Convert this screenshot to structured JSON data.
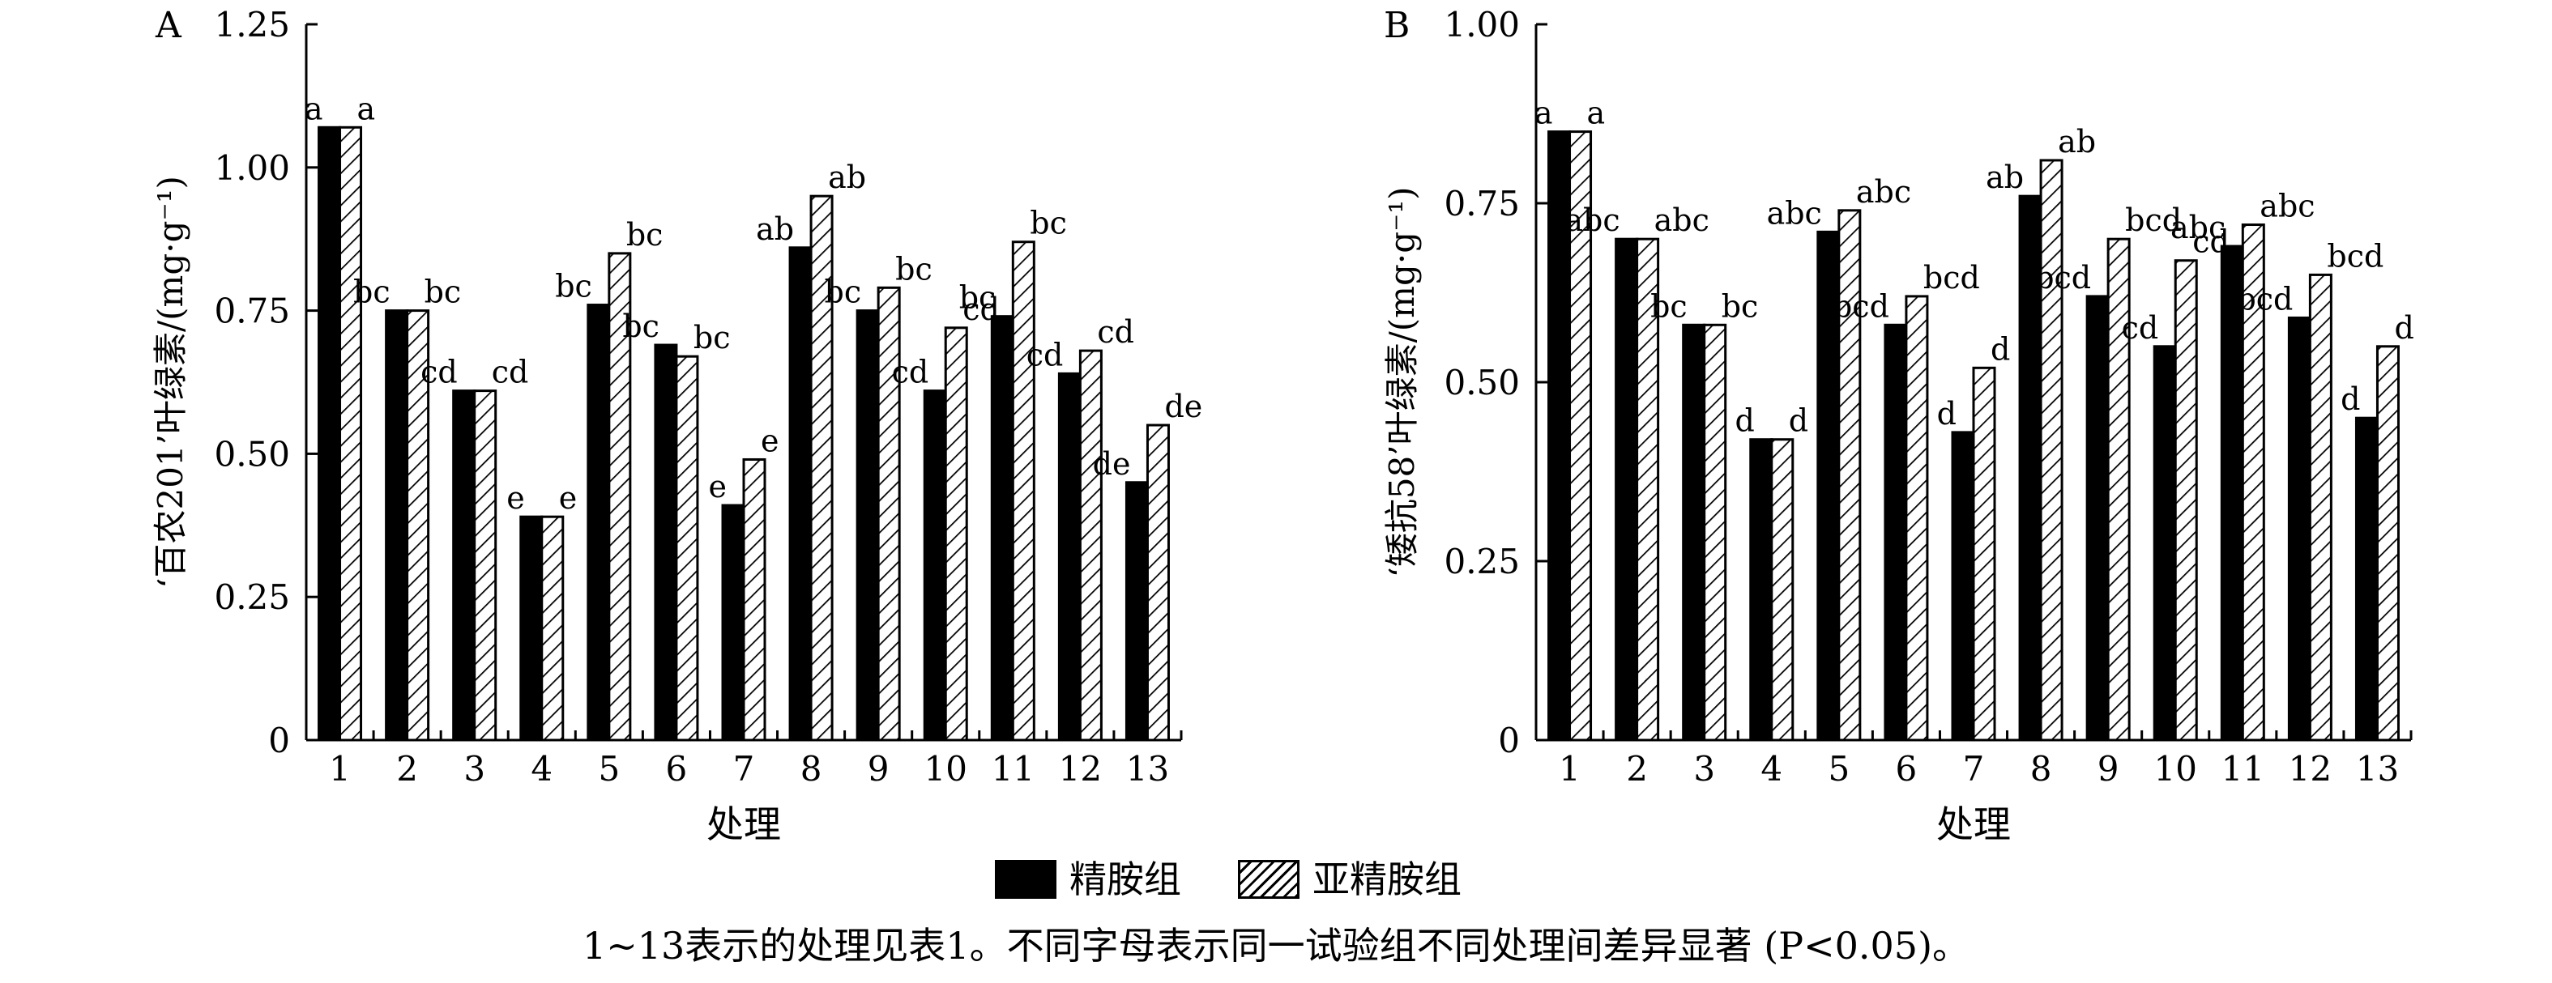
{
  "chart_data": [
    {
      "type": "bar",
      "panel": "A",
      "ylabel": "‘百农201’叶绿素/(mg·g⁻¹)",
      "xlabel": "处理",
      "ylim": [
        0,
        1.25
      ],
      "yticks": [
        "0",
        "0.25",
        "0.50",
        "0.75",
        "1.00",
        "1.25"
      ],
      "categories": [
        "1",
        "2",
        "3",
        "4",
        "5",
        "6",
        "7",
        "8",
        "9",
        "10",
        "11",
        "12",
        "13"
      ],
      "series": [
        {
          "name": "精胺组",
          "values": [
            1.07,
            0.75,
            0.61,
            0.39,
            0.76,
            0.69,
            0.41,
            0.86,
            0.75,
            0.61,
            0.74,
            0.64,
            0.45
          ],
          "labels": [
            "a",
            "bc",
            "cd",
            "e",
            "bc",
            "bc",
            "e",
            "ab",
            "bc",
            "cd",
            "bc",
            "cd",
            "de"
          ]
        },
        {
          "name": "亚精胺组",
          "values": [
            1.07,
            0.75,
            0.61,
            0.39,
            0.85,
            0.67,
            0.49,
            0.95,
            0.79,
            0.72,
            0.87,
            0.68,
            0.55
          ],
          "labels": [
            "a",
            "bc",
            "cd",
            "e",
            "bc",
            "bc",
            "e",
            "ab",
            "bc",
            "cd",
            "bc",
            "cd",
            "de"
          ]
        }
      ],
      "grid": false
    },
    {
      "type": "bar",
      "panel": "B",
      "ylabel": "‘矮抗58’叶绿素/(mg·g⁻¹)",
      "xlabel": "处理",
      "ylim": [
        0,
        1.0
      ],
      "yticks": [
        "0",
        "0.25",
        "0.50",
        "0.75",
        "1.00"
      ],
      "categories": [
        "1",
        "2",
        "3",
        "4",
        "5",
        "6",
        "7",
        "8",
        "9",
        "10",
        "11",
        "12",
        "13"
      ],
      "series": [
        {
          "name": "精胺组",
          "values": [
            0.85,
            0.7,
            0.58,
            0.42,
            0.71,
            0.58,
            0.43,
            0.76,
            0.62,
            0.55,
            0.69,
            0.59,
            0.45
          ],
          "labels": [
            "a",
            "abc",
            "bc",
            "d",
            "abc",
            "bcd",
            "d",
            "ab",
            "bcd",
            "cd",
            "abc",
            "bcd",
            "d"
          ]
        },
        {
          "name": "亚精胺组",
          "values": [
            0.85,
            0.7,
            0.58,
            0.42,
            0.74,
            0.62,
            0.52,
            0.81,
            0.7,
            0.67,
            0.72,
            0.65,
            0.55
          ],
          "labels": [
            "a",
            "abc",
            "bc",
            "d",
            "abc",
            "bcd",
            "d",
            "ab",
            "bcd",
            "cd",
            "abc",
            "bcd",
            "d"
          ]
        }
      ],
      "grid": false
    }
  ],
  "legend": {
    "solid_label": "精胺组",
    "hatch_label": "亚精胺组",
    "placement": "bottom-center"
  },
  "caption": "1~13表示的处理见表1。不同字母表示同一试验组不同处理间差异显著 (P<0.05)。",
  "colors": {
    "solid": "#000000",
    "hatch_bg": "#ffffff",
    "axis": "#000000"
  }
}
